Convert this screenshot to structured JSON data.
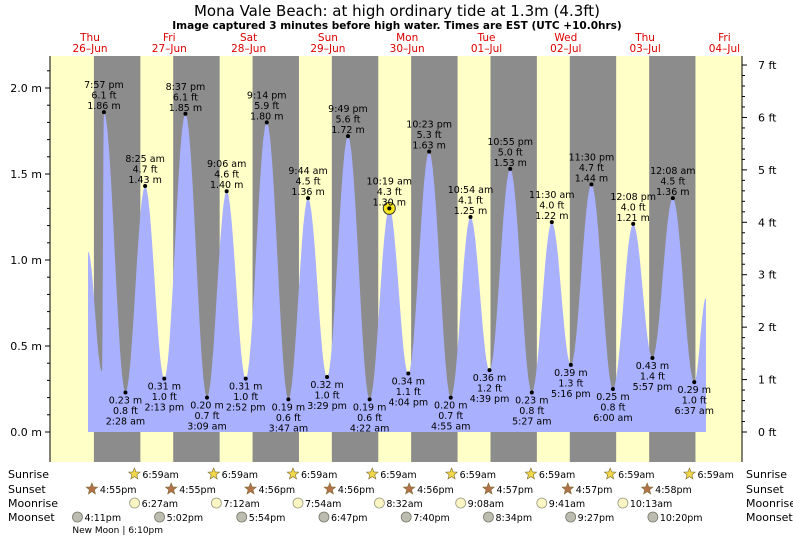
{
  "title": "Mona Vale Beach: at high  ordinary tide at 1.3m (4.3ft)",
  "subtitle": "Image captured 3 minutes before high water. Times are EST (UTC +10.0hrs)",
  "colors": {
    "day": "#ffffc8",
    "night": "#8c8c8c",
    "water": "#a9b1ff",
    "date_text": "#dd0000",
    "sun_star": "#f2d84a",
    "sunset_star": "#b4724a",
    "moon_rise": "#fbf5c4",
    "moon_set": "#bcbcb0"
  },
  "chart_data": {
    "type": "area",
    "title": "Mona Vale Beach: at high  ordinary tide at 1.3m (4.3ft)",
    "y_left_unit": "m",
    "y_right_unit": "ft",
    "ylim_m": [
      -0.18,
      2.2
    ],
    "y_left_ticks": [
      "0.0 m",
      "0.5 m",
      "1.0 m",
      "1.5 m",
      "2.0 m"
    ],
    "y_right_ticks": [
      "0 ft",
      "1 ft",
      "2 ft",
      "3 ft",
      "4 ft",
      "5 ft",
      "6 ft",
      "7 ft"
    ],
    "days": [
      {
        "dow": "Thu",
        "date": "26–Jun"
      },
      {
        "dow": "Fri",
        "date": "27–Jun"
      },
      {
        "dow": "Sat",
        "date": "28–Jun"
      },
      {
        "dow": "Sun",
        "date": "29–Jun"
      },
      {
        "dow": "Mon",
        "date": "30–Jun"
      },
      {
        "dow": "Tue",
        "date": "01–Jul"
      },
      {
        "dow": "Wed",
        "date": "02–Jul"
      },
      {
        "dow": "Thu",
        "date": "03–Jul"
      },
      {
        "dow": "Fri",
        "date": "04–Jul"
      }
    ],
    "tides": [
      {
        "type": "high",
        "time": "7:57 pm",
        "ft": "6.1 ft",
        "m": "1.86 m",
        "day": 0,
        "hour": 19.95,
        "value": 1.86
      },
      {
        "type": "low",
        "time": "2:28 am",
        "ft": "0.8 ft",
        "m": "0.23 m",
        "day": 1,
        "hour": 2.47,
        "value": 0.23
      },
      {
        "type": "high",
        "time": "8:25 am",
        "ft": "4.7 ft",
        "m": "1.43 m",
        "day": 1,
        "hour": 8.42,
        "value": 1.43
      },
      {
        "type": "low",
        "time": "2:13 pm",
        "ft": "1.0 ft",
        "m": "0.31 m",
        "day": 1,
        "hour": 14.22,
        "value": 0.31
      },
      {
        "type": "high",
        "time": "8:37 pm",
        "ft": "6.1 ft",
        "m": "1.85 m",
        "day": 1,
        "hour": 20.62,
        "value": 1.85
      },
      {
        "type": "low",
        "time": "3:09 am",
        "ft": "0.7 ft",
        "m": "0.20 m",
        "day": 2,
        "hour": 3.15,
        "value": 0.2
      },
      {
        "type": "high",
        "time": "9:06 am",
        "ft": "4.6 ft",
        "m": "1.40 m",
        "day": 2,
        "hour": 9.1,
        "value": 1.4
      },
      {
        "type": "low",
        "time": "2:52 pm",
        "ft": "1.0 ft",
        "m": "0.31 m",
        "day": 2,
        "hour": 14.87,
        "value": 0.31
      },
      {
        "type": "high",
        "time": "9:14 pm",
        "ft": "5.9 ft",
        "m": "1.80 m",
        "day": 2,
        "hour": 21.23,
        "value": 1.8
      },
      {
        "type": "low",
        "time": "3:47 am",
        "ft": "0.6 ft",
        "m": "0.19 m",
        "day": 3,
        "hour": 3.78,
        "value": 0.19
      },
      {
        "type": "high",
        "time": "9:44 am",
        "ft": "4.5 ft",
        "m": "1.36 m",
        "day": 3,
        "hour": 9.73,
        "value": 1.36
      },
      {
        "type": "low",
        "time": "3:29 pm",
        "ft": "1.0 ft",
        "m": "0.32 m",
        "day": 3,
        "hour": 15.48,
        "value": 0.32
      },
      {
        "type": "high",
        "time": "9:49 pm",
        "ft": "5.6 ft",
        "m": "1.72 m",
        "day": 3,
        "hour": 21.82,
        "value": 1.72
      },
      {
        "type": "low",
        "time": "4:22 am",
        "ft": "0.6 ft",
        "m": "0.19 m",
        "day": 4,
        "hour": 4.37,
        "value": 0.19
      },
      {
        "type": "high",
        "time": "10:19 am",
        "ft": "4.3 ft",
        "m": "1.30 m",
        "day": 4,
        "hour": 10.32,
        "value": 1.3,
        "current": true
      },
      {
        "type": "low",
        "time": "4:04 pm",
        "ft": "1.1 ft",
        "m": "0.34 m",
        "day": 4,
        "hour": 16.07,
        "value": 0.34
      },
      {
        "type": "high",
        "time": "10:23 pm",
        "ft": "5.3 ft",
        "m": "1.63 m",
        "day": 4,
        "hour": 22.38,
        "value": 1.63
      },
      {
        "type": "low",
        "time": "4:55 am",
        "ft": "0.7 ft",
        "m": "0.20 m",
        "day": 5,
        "hour": 4.92,
        "value": 0.2
      },
      {
        "type": "high",
        "time": "10:54 am",
        "ft": "4.1 ft",
        "m": "1.25 m",
        "day": 5,
        "hour": 10.9,
        "value": 1.25
      },
      {
        "type": "low",
        "time": "4:39 pm",
        "ft": "1.2 ft",
        "m": "0.36 m",
        "day": 5,
        "hour": 16.65,
        "value": 0.36
      },
      {
        "type": "high",
        "time": "10:55 pm",
        "ft": "5.0 ft",
        "m": "1.53 m",
        "day": 5,
        "hour": 22.92,
        "value": 1.53
      },
      {
        "type": "low",
        "time": "5:27 am",
        "ft": "0.8 ft",
        "m": "0.23 m",
        "day": 6,
        "hour": 5.45,
        "value": 0.23
      },
      {
        "type": "high",
        "time": "11:30 am",
        "ft": "4.0 ft",
        "m": "1.22 m",
        "day": 6,
        "hour": 11.5,
        "value": 1.22
      },
      {
        "type": "low",
        "time": "5:16 pm",
        "ft": "1.3 ft",
        "m": "0.39 m",
        "day": 6,
        "hour": 17.27,
        "value": 0.39
      },
      {
        "type": "high",
        "time": "11:30 pm",
        "ft": "4.7 ft",
        "m": "1.44 m",
        "day": 6,
        "hour": 23.5,
        "value": 1.44
      },
      {
        "type": "low",
        "time": "6:00 am",
        "ft": "0.8 ft",
        "m": "0.25 m",
        "day": 7,
        "hour": 6.0,
        "value": 0.25
      },
      {
        "type": "high",
        "time": "12:08 pm",
        "ft": "4.0 ft",
        "m": "1.21 m",
        "day": 7,
        "hour": 12.13,
        "value": 1.21
      },
      {
        "type": "low",
        "time": "5:57 pm",
        "ft": "1.4 ft",
        "m": "0.43 m",
        "day": 7,
        "hour": 17.95,
        "value": 0.43
      },
      {
        "type": "high",
        "time": "12:08 am",
        "ft": "4.5 ft",
        "m": "1.36 m",
        "day": 8,
        "hour": 0.13,
        "value": 1.36
      },
      {
        "type": "low",
        "time": "6:37 am",
        "ft": "1.0 ft",
        "m": "0.29 m",
        "day": 8,
        "hour": 6.62,
        "value": 0.29
      }
    ],
    "sun": {
      "sunrise": [
        {
          "day": 1,
          "hour": 6.98,
          "label": "6:59am"
        },
        {
          "day": 2,
          "hour": 6.98,
          "label": "6:59am"
        },
        {
          "day": 3,
          "hour": 6.98,
          "label": "6:59am"
        },
        {
          "day": 4,
          "hour": 6.98,
          "label": "6:59am"
        },
        {
          "day": 5,
          "hour": 6.98,
          "label": "6:59am"
        },
        {
          "day": 6,
          "hour": 6.98,
          "label": "6:59am"
        },
        {
          "day": 7,
          "hour": 6.98,
          "label": "6:59am"
        },
        {
          "day": 8,
          "hour": 6.98,
          "label": "6:59am"
        }
      ],
      "sunset": [
        {
          "day": 0,
          "hour": 16.92,
          "label": "4:55pm"
        },
        {
          "day": 1,
          "hour": 16.92,
          "label": "4:55pm"
        },
        {
          "day": 2,
          "hour": 16.93,
          "label": "4:56pm"
        },
        {
          "day": 3,
          "hour": 16.93,
          "label": "4:56pm"
        },
        {
          "day": 4,
          "hour": 16.93,
          "label": "4:56pm"
        },
        {
          "day": 5,
          "hour": 16.95,
          "label": "4:57pm"
        },
        {
          "day": 6,
          "hour": 16.95,
          "label": "4:57pm"
        },
        {
          "day": 7,
          "hour": 16.97,
          "label": "4:58pm"
        }
      ]
    },
    "moon": {
      "moonrise": [
        {
          "day": 1,
          "hour": 6.45,
          "label": "6:27am"
        },
        {
          "day": 2,
          "hour": 7.2,
          "label": "7:12am"
        },
        {
          "day": 3,
          "hour": 7.9,
          "label": "7:54am"
        },
        {
          "day": 4,
          "hour": 8.53,
          "label": "8:32am"
        },
        {
          "day": 5,
          "hour": 9.13,
          "label": "9:08am"
        },
        {
          "day": 6,
          "hour": 9.68,
          "label": "9:41am"
        },
        {
          "day": 7,
          "hour": 10.22,
          "label": "10:13am"
        }
      ],
      "moonset": [
        {
          "day": 0,
          "hour": 16.18,
          "label": "4:11pm"
        },
        {
          "day": 1,
          "hour": 17.03,
          "label": "5:02pm"
        },
        {
          "day": 2,
          "hour": 17.9,
          "label": "5:54pm"
        },
        {
          "day": 3,
          "hour": 18.78,
          "label": "6:47pm"
        },
        {
          "day": 4,
          "hour": 19.67,
          "label": "7:40pm"
        },
        {
          "day": 5,
          "hour": 20.57,
          "label": "8:34pm"
        },
        {
          "day": 6,
          "hour": 21.45,
          "label": "9:27pm"
        },
        {
          "day": 7,
          "hour": 22.33,
          "label": "10:20pm"
        }
      ],
      "new_moon_label": "New Moon",
      "new_moon_time": "6:10pm",
      "new_moon_day": 1,
      "new_moon_hour": 18.17
    },
    "row_labels": {
      "sunrise": "Sunrise",
      "sunset": "Sunset",
      "moonrise": "Moonrise",
      "moonset": "Moonset"
    }
  }
}
